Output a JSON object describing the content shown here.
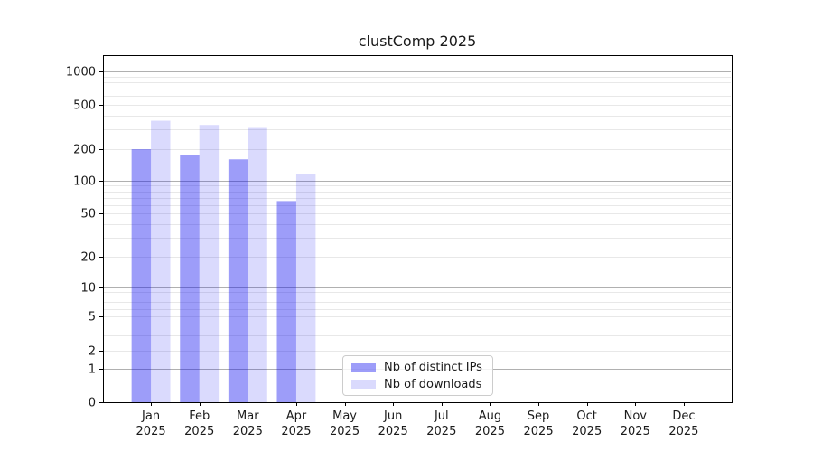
{
  "chart_data": {
    "type": "bar",
    "title": "clustComp 2025",
    "categories": [
      "Jan",
      "Feb",
      "Mar",
      "Apr",
      "May",
      "Jun",
      "Jul",
      "Aug",
      "Sep",
      "Oct",
      "Nov",
      "Dec"
    ],
    "x_tick_second_line": "2025",
    "series": [
      {
        "name": "Nb of distinct IPs",
        "color": "rgba(10,10,240,0.40)",
        "values": [
          200,
          175,
          160,
          65,
          0,
          0,
          0,
          0,
          0,
          0,
          0,
          0
        ]
      },
      {
        "name": "Nb of downloads",
        "color": "rgba(10,10,240,0.15)",
        "values": [
          360,
          330,
          310,
          115,
          0,
          0,
          0,
          0,
          0,
          0,
          0,
          0
        ]
      }
    ],
    "y_ticks": [
      0,
      1,
      2,
      5,
      10,
      20,
      50,
      100,
      200,
      500,
      1000
    ],
    "y_scale": "symlog",
    "ylim": [
      0,
      1400
    ],
    "xlabel": "",
    "ylabel": "",
    "grid": {
      "major_color": "#b0b0b0",
      "minor_color": "#e8e8e8",
      "enabled": true
    },
    "legend_position": "lower-center",
    "axis_color": "#000000"
  }
}
